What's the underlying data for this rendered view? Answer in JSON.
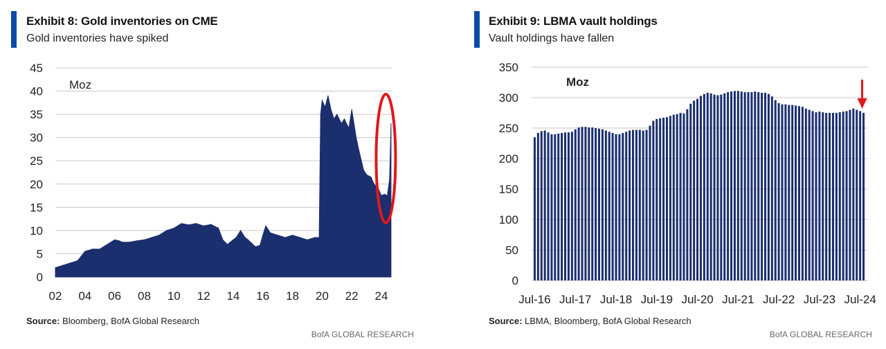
{
  "exhibits": [
    {
      "title": "Exhibit 8: Gold inventories on CME",
      "subtitle": "Gold inventories have spiked",
      "source_label": "Source:",
      "source_text": " Bloomberg, BofA Global Research",
      "brand": "BofA GLOBAL RESEARCH"
    },
    {
      "title": "Exhibit 9: LBMA vault holdings",
      "subtitle": "Vault holdings have fallen",
      "source_label": "Source:",
      "source_text": " LBMA, Bloomberg, BofA Global Research",
      "brand": "BofA GLOBAL RESEARCH"
    }
  ],
  "colors": {
    "bar": "#1b2f6e",
    "accent": "#0a4ba8",
    "highlight": "#e0181b",
    "grid": "#c8c8c8"
  },
  "chart_data": [
    {
      "type": "area",
      "title": "Exhibit 8: Gold inventories on CME",
      "ylabel": "Moz",
      "ylim": [
        0,
        45
      ],
      "yticks": [
        0,
        5,
        10,
        15,
        20,
        25,
        30,
        35,
        40,
        45
      ],
      "xlim": [
        2,
        24.7
      ],
      "xticks": [
        2,
        4,
        6,
        8,
        10,
        12,
        14,
        16,
        18,
        20,
        22,
        24
      ],
      "xticklabels": [
        "02",
        "04",
        "06",
        "08",
        "10",
        "12",
        "14",
        "16",
        "18",
        "20",
        "22",
        "24"
      ],
      "annotation": "red ellipse highlighting the 2024 spike",
      "series": [
        {
          "name": "CME gold inventories (Moz)",
          "x": [
            2.0,
            2.5,
            3.0,
            3.5,
            4.0,
            4.5,
            5.0,
            5.5,
            6.0,
            6.3,
            6.5,
            7.0,
            7.5,
            8.0,
            8.5,
            9.0,
            9.5,
            10.0,
            10.5,
            11.0,
            11.5,
            12.0,
            12.5,
            13.0,
            13.3,
            13.6,
            14.0,
            14.2,
            14.5,
            14.8,
            15.0,
            15.5,
            15.8,
            16.0,
            16.2,
            16.5,
            17.0,
            17.5,
            18.0,
            18.5,
            19.0,
            19.5,
            19.8,
            19.9,
            20.0,
            20.2,
            20.4,
            20.6,
            20.8,
            21.0,
            21.3,
            21.5,
            21.8,
            22.0,
            22.3,
            22.5,
            22.8,
            23.0,
            23.3,
            23.5,
            23.8,
            24.0,
            24.2,
            24.4,
            24.55,
            24.65
          ],
          "values": [
            2.0,
            2.5,
            3.0,
            3.5,
            5.5,
            6.0,
            6.0,
            7.0,
            8.0,
            7.8,
            7.5,
            7.5,
            7.8,
            8.0,
            8.5,
            9.0,
            10.0,
            10.5,
            11.5,
            11.2,
            11.5,
            11.0,
            11.3,
            10.5,
            8.0,
            7.0,
            8.0,
            8.5,
            10.0,
            8.5,
            8.0,
            6.5,
            6.8,
            9.0,
            11.0,
            9.5,
            9.0,
            8.5,
            9.0,
            8.5,
            8.0,
            8.5,
            8.5,
            35.0,
            38.0,
            36.5,
            39.0,
            36.0,
            34.0,
            35.0,
            33.0,
            34.0,
            32.0,
            36.0,
            30.0,
            27.0,
            23.0,
            22.0,
            21.5,
            20.0,
            19.0,
            17.5,
            17.8,
            17.5,
            21.0,
            33.0
          ]
        }
      ]
    },
    {
      "type": "bar",
      "title": "Exhibit 9: LBMA vault holdings",
      "ylabel": "Moz",
      "ylim": [
        0,
        350
      ],
      "yticks": [
        0,
        50,
        100,
        150,
        200,
        250,
        300,
        350
      ],
      "xticklabels": [
        "Jul-16",
        "Jul-17",
        "Jul-18",
        "Jul-19",
        "Jul-20",
        "Jul-21",
        "Jul-22",
        "Jul-23",
        "Jul-24"
      ],
      "annotation": "red arrow pointing at latest bar",
      "categories_start": "Jul-16",
      "frequency": "monthly",
      "series": [
        {
          "name": "LBMA vault holdings (Moz)",
          "values": [
            235,
            242,
            245,
            246,
            243,
            240,
            240,
            241,
            242,
            243,
            243,
            244,
            248,
            251,
            252,
            252,
            251,
            251,
            250,
            249,
            248,
            246,
            244,
            242,
            240,
            240,
            242,
            244,
            246,
            247,
            247,
            247,
            246,
            247,
            254,
            262,
            265,
            266,
            267,
            268,
            270,
            272,
            273,
            275,
            274,
            281,
            290,
            295,
            298,
            303,
            306,
            308,
            307,
            305,
            304,
            305,
            307,
            309,
            310,
            311,
            311,
            310,
            309,
            309,
            309,
            310,
            309,
            308,
            308,
            306,
            302,
            296,
            291,
            289,
            289,
            288,
            288,
            287,
            286,
            285,
            282,
            280,
            278,
            276,
            277,
            276,
            275,
            275,
            275,
            275,
            276,
            277,
            278,
            280,
            282,
            280,
            278,
            275
          ]
        }
      ]
    }
  ]
}
